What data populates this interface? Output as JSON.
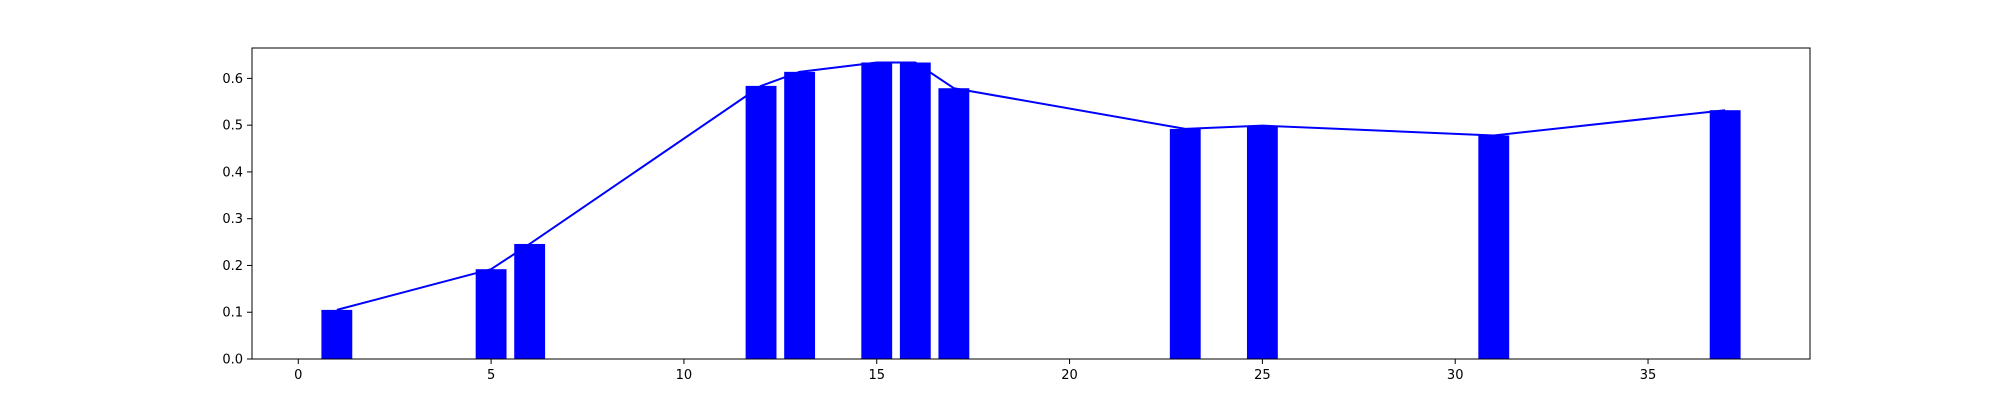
{
  "chart_data": {
    "type": "bar",
    "title": "",
    "xlabel": "",
    "ylabel": "",
    "xlim": [
      -1.2,
      39.2
    ],
    "ylim": [
      0,
      0.665
    ],
    "x_ticks": [
      0,
      5,
      10,
      15,
      20,
      25,
      30,
      35
    ],
    "y_ticks": [
      0.0,
      0.1,
      0.2,
      0.3,
      0.4,
      0.5,
      0.6
    ],
    "grid": false,
    "legend": "none",
    "bar_color": "#0000ff",
    "line_color": "#0000ff",
    "bar_width": 0.8,
    "series": [
      {
        "type": "bar",
        "x": [
          1,
          5,
          6,
          12,
          13,
          15,
          16,
          17,
          23,
          25,
          31,
          37
        ],
        "values": [
          0.105,
          0.192,
          0.246,
          0.584,
          0.614,
          0.634,
          0.634,
          0.579,
          0.492,
          0.499,
          0.478,
          0.532
        ]
      },
      {
        "type": "line",
        "x": [
          1,
          5,
          6,
          12,
          13,
          15,
          16,
          17,
          23,
          25,
          31,
          37
        ],
        "values": [
          0.105,
          0.192,
          0.246,
          0.584,
          0.614,
          0.634,
          0.634,
          0.579,
          0.492,
          0.499,
          0.478,
          0.532
        ]
      }
    ]
  }
}
